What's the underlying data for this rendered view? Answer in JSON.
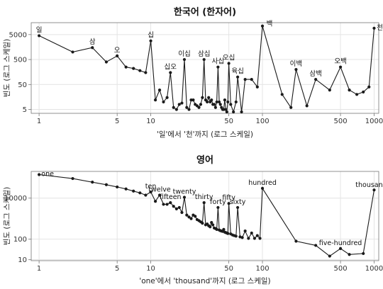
{
  "chart_data": [
    {
      "type": "line",
      "title": "한국어 (한자어)",
      "xlabel": "'일'에서 '천'까지 (로그 스케일)",
      "ylabel": "빈도 (로그 스케일)",
      "x_scale": "log",
      "y_scale": "log",
      "xlim": [
        0.85,
        1100
      ],
      "ylim": [
        3.5,
        15000
      ],
      "xticks": [
        1,
        5,
        10,
        50,
        100,
        500,
        1000
      ],
      "xtick_labels": [
        "1",
        "5",
        "10",
        "50",
        "100",
        "500",
        "1000"
      ],
      "yticks": [
        5,
        50,
        500,
        5000
      ],
      "ytick_labels": [
        "5",
        "50",
        "500",
        "5000"
      ],
      "grid": true,
      "points": [
        {
          "x": 1,
          "y": 4500,
          "label": "일"
        },
        {
          "x": 2,
          "y": 1000
        },
        {
          "x": 3,
          "y": 1500,
          "label": "삼"
        },
        {
          "x": 4,
          "y": 400
        },
        {
          "x": 5,
          "y": 700,
          "label": "오"
        },
        {
          "x": 6,
          "y": 250
        },
        {
          "x": 7,
          "y": 220
        },
        {
          "x": 8,
          "y": 180
        },
        {
          "x": 9,
          "y": 150
        },
        {
          "x": 10,
          "y": 2800,
          "label": "십"
        },
        {
          "x": 11,
          "y": 12
        },
        {
          "x": 12,
          "y": 30
        },
        {
          "x": 13,
          "y": 10
        },
        {
          "x": 14,
          "y": 15
        },
        {
          "x": 15,
          "y": 150,
          "label": "십오"
        },
        {
          "x": 16,
          "y": 6
        },
        {
          "x": 17,
          "y": 5
        },
        {
          "x": 18,
          "y": 8
        },
        {
          "x": 19,
          "y": 9
        },
        {
          "x": 20,
          "y": 500,
          "label": "이십"
        },
        {
          "x": 21,
          "y": 6
        },
        {
          "x": 22,
          "y": 5
        },
        {
          "x": 23,
          "y": 12
        },
        {
          "x": 24,
          "y": 12
        },
        {
          "x": 25,
          "y": 8
        },
        {
          "x": 26,
          "y": 7
        },
        {
          "x": 27,
          "y": 6
        },
        {
          "x": 28,
          "y": 8
        },
        {
          "x": 29,
          "y": 15
        },
        {
          "x": 30,
          "y": 500,
          "label": "삼십"
        },
        {
          "x": 31,
          "y": 12
        },
        {
          "x": 32,
          "y": 10
        },
        {
          "x": 33,
          "y": 15
        },
        {
          "x": 34,
          "y": 10
        },
        {
          "x": 35,
          "y": 12
        },
        {
          "x": 36,
          "y": 8
        },
        {
          "x": 37,
          "y": 8
        },
        {
          "x": 38,
          "y": 6
        },
        {
          "x": 39,
          "y": 10
        },
        {
          "x": 40,
          "y": 250,
          "label": "사십"
        },
        {
          "x": 41,
          "y": 10
        },
        {
          "x": 42,
          "y": 8
        },
        {
          "x": 43,
          "y": 6
        },
        {
          "x": 44,
          "y": 5
        },
        {
          "x": 45,
          "y": 5
        },
        {
          "x": 46,
          "y": 12
        },
        {
          "x": 47,
          "y": 5
        },
        {
          "x": 48,
          "y": 4
        },
        {
          "x": 49,
          "y": 10
        },
        {
          "x": 50,
          "y": 350,
          "label": "오십"
        },
        {
          "x": 52,
          "y": 8
        },
        {
          "x": 55,
          "y": 4
        },
        {
          "x": 58,
          "y": 10
        },
        {
          "x": 60,
          "y": 100,
          "label": "육십"
        },
        {
          "x": 65,
          "y": 4
        },
        {
          "x": 70,
          "y": 80
        },
        {
          "x": 80,
          "y": 80
        },
        {
          "x": 90,
          "y": 40
        },
        {
          "x": 100,
          "y": 11000,
          "label": "백"
        },
        {
          "x": 150,
          "y": 20
        },
        {
          "x": 180,
          "y": 6
        },
        {
          "x": 200,
          "y": 200,
          "label": "이백"
        },
        {
          "x": 250,
          "y": 7
        },
        {
          "x": 300,
          "y": 80,
          "label": "삼백"
        },
        {
          "x": 400,
          "y": 30
        },
        {
          "x": 500,
          "y": 250,
          "label": "오백"
        },
        {
          "x": 600,
          "y": 30
        },
        {
          "x": 700,
          "y": 20
        },
        {
          "x": 800,
          "y": 25
        },
        {
          "x": 900,
          "y": 40
        },
        {
          "x": 1000,
          "y": 9000,
          "label": "천"
        }
      ]
    },
    {
      "type": "line",
      "title": "영어",
      "xlabel": "'one'에서 'thousand'까지 (로그 스케일)",
      "ylabel": "빈도 (로그 스케일)",
      "x_scale": "log",
      "y_scale": "log",
      "xlim": [
        0.85,
        1100
      ],
      "ylim": [
        9,
        200000
      ],
      "xticks": [
        1,
        5,
        10,
        50,
        100,
        500,
        1000
      ],
      "xtick_labels": [
        "1",
        "5",
        "10",
        "50",
        "100",
        "500",
        "1000"
      ],
      "yticks": [
        10,
        100,
        10000
      ],
      "ytick_labels": [
        "10",
        "100",
        "10000"
      ],
      "grid": true,
      "points": [
        {
          "x": 1,
          "y": 140000,
          "label": "one"
        },
        {
          "x": 2,
          "y": 90000
        },
        {
          "x": 3,
          "y": 60000
        },
        {
          "x": 4,
          "y": 45000
        },
        {
          "x": 5,
          "y": 35000
        },
        {
          "x": 6,
          "y": 28000
        },
        {
          "x": 7,
          "y": 22000
        },
        {
          "x": 8,
          "y": 18000
        },
        {
          "x": 9,
          "y": 14000
        },
        {
          "x": 10,
          "y": 20000,
          "label": "ten"
        },
        {
          "x": 11,
          "y": 7000
        },
        {
          "x": 12,
          "y": 14000,
          "label": "twelve"
        },
        {
          "x": 13,
          "y": 5000
        },
        {
          "x": 14,
          "y": 5000
        },
        {
          "x": 15,
          "y": 6000,
          "label": "fifteen"
        },
        {
          "x": 16,
          "y": 4000
        },
        {
          "x": 17,
          "y": 3000
        },
        {
          "x": 18,
          "y": 3500
        },
        {
          "x": 19,
          "y": 2000
        },
        {
          "x": 20,
          "y": 11000,
          "label": "twenty"
        },
        {
          "x": 21,
          "y": 1500
        },
        {
          "x": 22,
          "y": 1200
        },
        {
          "x": 23,
          "y": 1000
        },
        {
          "x": 24,
          "y": 1500
        },
        {
          "x": 25,
          "y": 1300
        },
        {
          "x": 26,
          "y": 900
        },
        {
          "x": 27,
          "y": 800
        },
        {
          "x": 28,
          "y": 700
        },
        {
          "x": 29,
          "y": 600
        },
        {
          "x": 30,
          "y": 6000,
          "label": "thirty"
        },
        {
          "x": 31,
          "y": 500
        },
        {
          "x": 32,
          "y": 550
        },
        {
          "x": 33,
          "y": 450
        },
        {
          "x": 34,
          "y": 400
        },
        {
          "x": 35,
          "y": 650
        },
        {
          "x": 36,
          "y": 500
        },
        {
          "x": 37,
          "y": 350
        },
        {
          "x": 38,
          "y": 330
        },
        {
          "x": 39,
          "y": 300
        },
        {
          "x": 40,
          "y": 3500,
          "label": "forty"
        },
        {
          "x": 41,
          "y": 280
        },
        {
          "x": 42,
          "y": 260
        },
        {
          "x": 43,
          "y": 250
        },
        {
          "x": 44,
          "y": 240
        },
        {
          "x": 45,
          "y": 300
        },
        {
          "x": 46,
          "y": 220
        },
        {
          "x": 47,
          "y": 210
        },
        {
          "x": 48,
          "y": 200
        },
        {
          "x": 49,
          "y": 190
        },
        {
          "x": 50,
          "y": 5500,
          "label": "fifty"
        },
        {
          "x": 52,
          "y": 180
        },
        {
          "x": 54,
          "y": 160
        },
        {
          "x": 56,
          "y": 150
        },
        {
          "x": 58,
          "y": 140
        },
        {
          "x": 60,
          "y": 3500,
          "label": "sixty"
        },
        {
          "x": 63,
          "y": 130
        },
        {
          "x": 66,
          "y": 120
        },
        {
          "x": 70,
          "y": 250
        },
        {
          "x": 75,
          "y": 110
        },
        {
          "x": 80,
          "y": 200
        },
        {
          "x": 85,
          "y": 110
        },
        {
          "x": 90,
          "y": 150
        },
        {
          "x": 95,
          "y": 110
        },
        {
          "x": 100,
          "y": 30000,
          "label": "hundred"
        },
        {
          "x": 200,
          "y": 80
        },
        {
          "x": 300,
          "y": 50
        },
        {
          "x": 400,
          "y": 15
        },
        {
          "x": 500,
          "y": 35,
          "label": "five-hundred"
        },
        {
          "x": 600,
          "y": 18
        },
        {
          "x": 800,
          "y": 20
        },
        {
          "x": 1000,
          "y": 25000,
          "label": "thousand"
        }
      ]
    }
  ]
}
